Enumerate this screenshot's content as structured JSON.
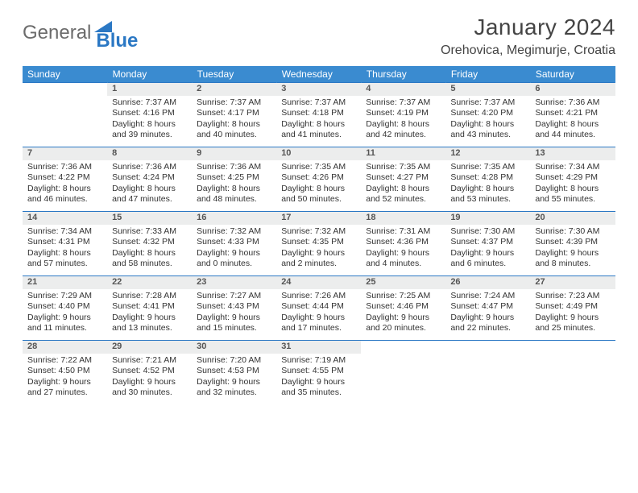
{
  "logo": {
    "text1": "General",
    "text2": "Blue"
  },
  "title": "January 2024",
  "location": "Orehovica, Megimurje, Croatia",
  "header_color": "#3a8bd0",
  "rule_color": "#2b78c4",
  "daynum_bg": "#eceded",
  "weekdays": [
    "Sunday",
    "Monday",
    "Tuesday",
    "Wednesday",
    "Thursday",
    "Friday",
    "Saturday"
  ],
  "weeks": [
    {
      "nums": [
        "",
        "1",
        "2",
        "3",
        "4",
        "5",
        "6"
      ],
      "cells": [
        [],
        [
          "Sunrise: 7:37 AM",
          "Sunset: 4:16 PM",
          "Daylight: 8 hours",
          "and 39 minutes."
        ],
        [
          "Sunrise: 7:37 AM",
          "Sunset: 4:17 PM",
          "Daylight: 8 hours",
          "and 40 minutes."
        ],
        [
          "Sunrise: 7:37 AM",
          "Sunset: 4:18 PM",
          "Daylight: 8 hours",
          "and 41 minutes."
        ],
        [
          "Sunrise: 7:37 AM",
          "Sunset: 4:19 PM",
          "Daylight: 8 hours",
          "and 42 minutes."
        ],
        [
          "Sunrise: 7:37 AM",
          "Sunset: 4:20 PM",
          "Daylight: 8 hours",
          "and 43 minutes."
        ],
        [
          "Sunrise: 7:36 AM",
          "Sunset: 4:21 PM",
          "Daylight: 8 hours",
          "and 44 minutes."
        ]
      ]
    },
    {
      "nums": [
        "7",
        "8",
        "9",
        "10",
        "11",
        "12",
        "13"
      ],
      "cells": [
        [
          "Sunrise: 7:36 AM",
          "Sunset: 4:22 PM",
          "Daylight: 8 hours",
          "and 46 minutes."
        ],
        [
          "Sunrise: 7:36 AM",
          "Sunset: 4:24 PM",
          "Daylight: 8 hours",
          "and 47 minutes."
        ],
        [
          "Sunrise: 7:36 AM",
          "Sunset: 4:25 PM",
          "Daylight: 8 hours",
          "and 48 minutes."
        ],
        [
          "Sunrise: 7:35 AM",
          "Sunset: 4:26 PM",
          "Daylight: 8 hours",
          "and 50 minutes."
        ],
        [
          "Sunrise: 7:35 AM",
          "Sunset: 4:27 PM",
          "Daylight: 8 hours",
          "and 52 minutes."
        ],
        [
          "Sunrise: 7:35 AM",
          "Sunset: 4:28 PM",
          "Daylight: 8 hours",
          "and 53 minutes."
        ],
        [
          "Sunrise: 7:34 AM",
          "Sunset: 4:29 PM",
          "Daylight: 8 hours",
          "and 55 minutes."
        ]
      ]
    },
    {
      "nums": [
        "14",
        "15",
        "16",
        "17",
        "18",
        "19",
        "20"
      ],
      "cells": [
        [
          "Sunrise: 7:34 AM",
          "Sunset: 4:31 PM",
          "Daylight: 8 hours",
          "and 57 minutes."
        ],
        [
          "Sunrise: 7:33 AM",
          "Sunset: 4:32 PM",
          "Daylight: 8 hours",
          "and 58 minutes."
        ],
        [
          "Sunrise: 7:32 AM",
          "Sunset: 4:33 PM",
          "Daylight: 9 hours",
          "and 0 minutes."
        ],
        [
          "Sunrise: 7:32 AM",
          "Sunset: 4:35 PM",
          "Daylight: 9 hours",
          "and 2 minutes."
        ],
        [
          "Sunrise: 7:31 AM",
          "Sunset: 4:36 PM",
          "Daylight: 9 hours",
          "and 4 minutes."
        ],
        [
          "Sunrise: 7:30 AM",
          "Sunset: 4:37 PM",
          "Daylight: 9 hours",
          "and 6 minutes."
        ],
        [
          "Sunrise: 7:30 AM",
          "Sunset: 4:39 PM",
          "Daylight: 9 hours",
          "and 8 minutes."
        ]
      ]
    },
    {
      "nums": [
        "21",
        "22",
        "23",
        "24",
        "25",
        "26",
        "27"
      ],
      "cells": [
        [
          "Sunrise: 7:29 AM",
          "Sunset: 4:40 PM",
          "Daylight: 9 hours",
          "and 11 minutes."
        ],
        [
          "Sunrise: 7:28 AM",
          "Sunset: 4:41 PM",
          "Daylight: 9 hours",
          "and 13 minutes."
        ],
        [
          "Sunrise: 7:27 AM",
          "Sunset: 4:43 PM",
          "Daylight: 9 hours",
          "and 15 minutes."
        ],
        [
          "Sunrise: 7:26 AM",
          "Sunset: 4:44 PM",
          "Daylight: 9 hours",
          "and 17 minutes."
        ],
        [
          "Sunrise: 7:25 AM",
          "Sunset: 4:46 PM",
          "Daylight: 9 hours",
          "and 20 minutes."
        ],
        [
          "Sunrise: 7:24 AM",
          "Sunset: 4:47 PM",
          "Daylight: 9 hours",
          "and 22 minutes."
        ],
        [
          "Sunrise: 7:23 AM",
          "Sunset: 4:49 PM",
          "Daylight: 9 hours",
          "and 25 minutes."
        ]
      ]
    },
    {
      "nums": [
        "28",
        "29",
        "30",
        "31",
        "",
        "",
        ""
      ],
      "cells": [
        [
          "Sunrise: 7:22 AM",
          "Sunset: 4:50 PM",
          "Daylight: 9 hours",
          "and 27 minutes."
        ],
        [
          "Sunrise: 7:21 AM",
          "Sunset: 4:52 PM",
          "Daylight: 9 hours",
          "and 30 minutes."
        ],
        [
          "Sunrise: 7:20 AM",
          "Sunset: 4:53 PM",
          "Daylight: 9 hours",
          "and 32 minutes."
        ],
        [
          "Sunrise: 7:19 AM",
          "Sunset: 4:55 PM",
          "Daylight: 9 hours",
          "and 35 minutes."
        ],
        [],
        [],
        []
      ]
    }
  ]
}
